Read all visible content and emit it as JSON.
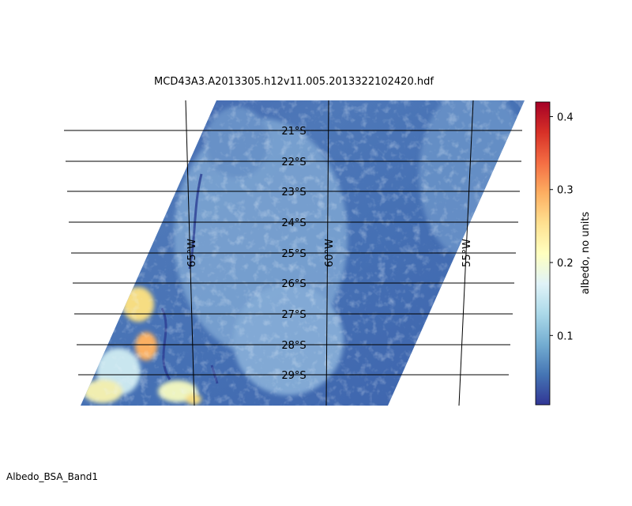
{
  "title": "MCD43A3.A2013305.h12v11.005.2013322102420.hdf",
  "footer_label": "Albedo_BSA_Band1",
  "map": {
    "lat_labels": [
      "21°S",
      "22°S",
      "23°S",
      "24°S",
      "25°S",
      "26°S",
      "27°S",
      "28°S",
      "29°S"
    ],
    "lon_labels": [
      "65°W",
      "60°W",
      "55°W"
    ],
    "dominant_color": "#4a74b6",
    "highlight_colors": [
      "#f6dd82",
      "#fbb062",
      "#2c3d92"
    ]
  },
  "colorbar": {
    "label": "albedo, no units",
    "min": 0.005,
    "max": 0.42,
    "tick_values": [
      0.1,
      0.2,
      0.3,
      0.4
    ],
    "tick_labels": [
      "0.1",
      "0.2",
      "0.3",
      "0.4"
    ],
    "colormap": "RdYlBu_r",
    "colors": [
      "#313695",
      "#4575b4",
      "#74add1",
      "#abd9e9",
      "#e0f3f8",
      "#ffffbf",
      "#fee090",
      "#fdae61",
      "#f46d43",
      "#d73027",
      "#a50026"
    ]
  }
}
